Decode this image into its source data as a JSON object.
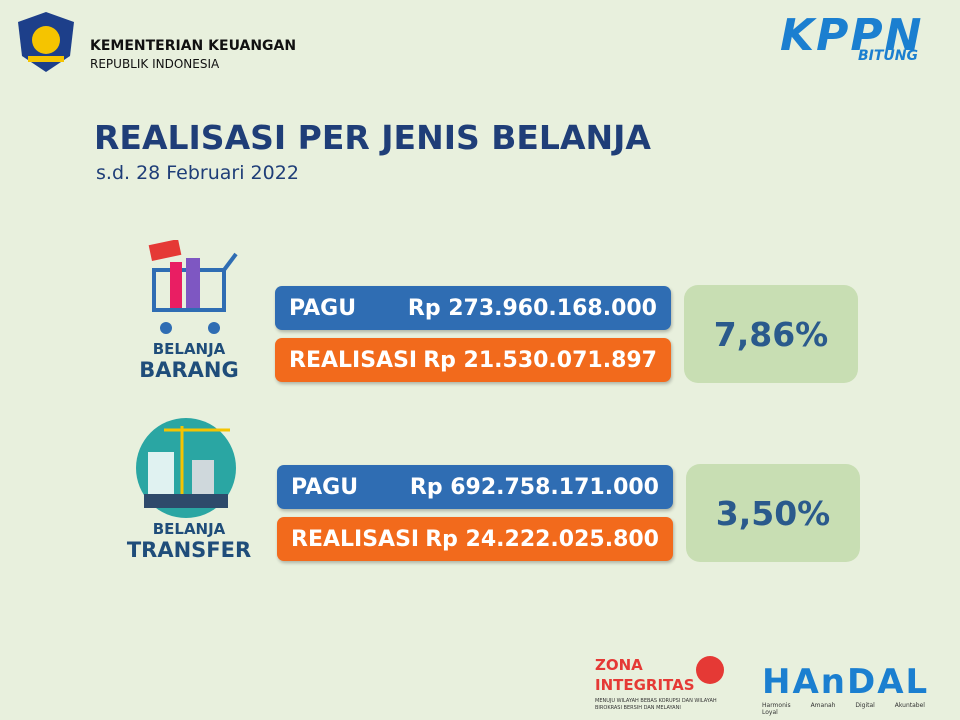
{
  "header": {
    "ministry": "KEMENTERIAN KEUANGAN",
    "republic": "REPUBLIK INDONESIA",
    "logo_text": "KPPN",
    "logo_sub": "BITUNG"
  },
  "title": "REALISASI PER JENIS BELANJA",
  "subtitle": "s.d. 28 Februari 2022",
  "sections": [
    {
      "label_top": "BELANJA",
      "label_bottom": "BARANG",
      "pagu_label": "PAGU",
      "pagu_value": "Rp 273.960.168.000",
      "realisasi_label": "REALISASI",
      "realisasi_value": "Rp 21.530.071.897",
      "percent": "7,86%"
    },
    {
      "label_top": "BELANJA",
      "label_bottom": "TRANSFER",
      "pagu_label": "PAGU",
      "pagu_value": "Rp 692.758.171.000",
      "realisasi_label": "REALISASI",
      "realisasi_value": "Rp 24.222.025.800",
      "percent": "3,50%"
    }
  ],
  "footer": {
    "zona": "ZONA",
    "integritas": "INTEGRITAS",
    "zona_note": "MENUJU WILAYAH BEBAS KORUPSI DAN WILAYAH BIROKRASI BERSIH DAN MELAYANI",
    "handal": "HAnDAL",
    "handal_words": "Harmonis Amanah Digital Akuntabel Loyal"
  }
}
